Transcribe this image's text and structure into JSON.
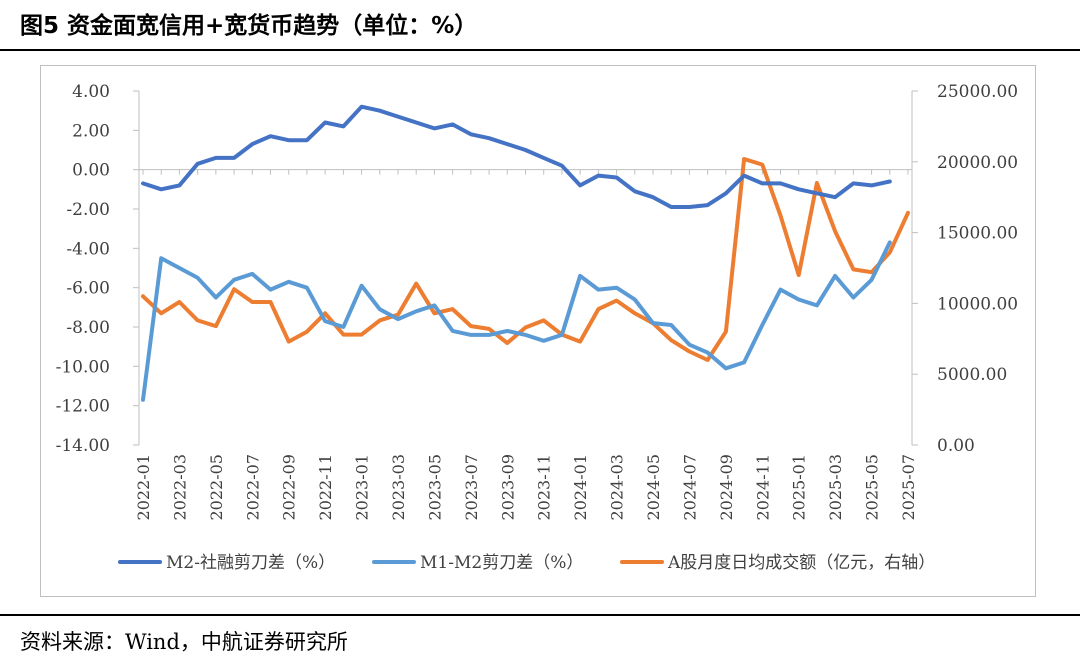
{
  "header": {
    "title": "图5 资金面宽信用+宽货币趋势（单位：%）"
  },
  "footer": {
    "source": "资料来源：Wind，中航证券研究所"
  },
  "chart_data": {
    "type": "line",
    "x": [
      "2022-01",
      "2022-02",
      "2022-03",
      "2022-04",
      "2022-05",
      "2022-06",
      "2022-07",
      "2022-08",
      "2022-09",
      "2022-10",
      "2022-11",
      "2022-12",
      "2023-01",
      "2023-02",
      "2023-03",
      "2023-04",
      "2023-05",
      "2023-06",
      "2023-07",
      "2023-08",
      "2023-09",
      "2023-10",
      "2023-11",
      "2023-12",
      "2024-01",
      "2024-02",
      "2024-03",
      "2024-04",
      "2024-05",
      "2024-06",
      "2024-07",
      "2024-08",
      "2024-09",
      "2024-10",
      "2024-11",
      "2024-12",
      "2025-01",
      "2025-02",
      "2025-03",
      "2025-04",
      "2025-05",
      "2025-06",
      "2025-07"
    ],
    "x_tick_labels": [
      "2022-01",
      "2022-03",
      "2022-05",
      "2022-07",
      "2022-09",
      "2022-11",
      "2023-01",
      "2023-03",
      "2023-05",
      "2023-07",
      "2023-09",
      "2023-11",
      "2024-01",
      "2024-03",
      "2024-05",
      "2024-07",
      "2024-09",
      "2024-11",
      "2025-01",
      "2025-03",
      "2025-05",
      "2025-07"
    ],
    "y_left": {
      "lim": [
        -14,
        4
      ],
      "ticks": [
        "4.00",
        "2.00",
        "0.00",
        "-2.00",
        "-4.00",
        "-6.00",
        "-8.00",
        "-10.00",
        "-12.00",
        "-14.00"
      ]
    },
    "y_right": {
      "lim": [
        0,
        25000
      ],
      "ticks": [
        "25000.00",
        "20000.00",
        "15000.00",
        "10000.00",
        "5000.00",
        "0.00"
      ]
    },
    "grid": false,
    "legend_position": "bottom",
    "series": [
      {
        "name": "M2-社融剪刀差（%）",
        "axis": "left",
        "color": "#4472c4",
        "values": [
          -0.7,
          -1.0,
          -0.8,
          0.3,
          0.6,
          0.6,
          1.3,
          1.7,
          1.5,
          1.5,
          2.4,
          2.2,
          3.2,
          3.0,
          2.7,
          2.4,
          2.1,
          2.3,
          1.8,
          1.6,
          1.3,
          1.0,
          0.6,
          0.2,
          -0.8,
          -0.3,
          -0.4,
          -1.1,
          -1.4,
          -1.9,
          -1.9,
          -1.8,
          -1.2,
          -0.3,
          -0.7,
          -0.7,
          -1.0,
          -1.2,
          -1.4,
          -0.7,
          -0.8,
          -0.6,
          null
        ]
      },
      {
        "name": "M1-M2剪刀差（%）",
        "axis": "left",
        "color": "#5b9bd5",
        "values": [
          -11.7,
          -4.5,
          -5.0,
          -5.5,
          -6.5,
          -5.6,
          -5.3,
          -6.1,
          -5.7,
          -6.0,
          -7.7,
          -8.0,
          -5.9,
          -7.1,
          -7.6,
          -7.2,
          -6.9,
          -8.2,
          -8.4,
          -8.4,
          -8.2,
          -8.4,
          -8.7,
          -8.4,
          -5.4,
          -6.1,
          -6.0,
          -6.6,
          -7.8,
          -7.9,
          -8.9,
          -9.3,
          -10.1,
          -9.8,
          -7.9,
          -6.1,
          -6.6,
          -6.9,
          -5.4,
          -6.5,
          -5.6,
          -3.7,
          null
        ]
      },
      {
        "name": "A股月度日均成交额（亿元，右轴）",
        "axis": "right",
        "color": "#ed7d31",
        "values": [
          10500,
          9300,
          10100,
          8800,
          8400,
          11000,
          10100,
          10100,
          7300,
          8000,
          9300,
          7800,
          7800,
          8800,
          9200,
          11400,
          9300,
          9600,
          8400,
          8200,
          7200,
          8300,
          8800,
          7800,
          7300,
          9600,
          10200,
          9300,
          8600,
          7400,
          6600,
          6000,
          8000,
          20200,
          19800,
          16200,
          12000,
          18500,
          15100,
          12400,
          12200,
          13600,
          16400
        ]
      }
    ]
  }
}
